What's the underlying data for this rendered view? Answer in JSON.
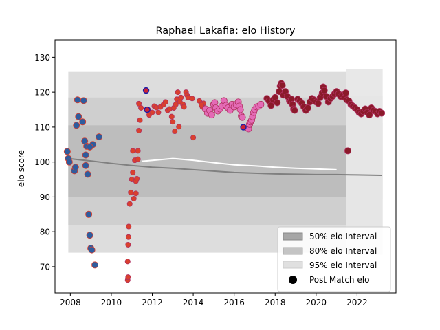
{
  "chart_data": {
    "type": "scatter",
    "title": "Raphael Lakafia: elo History",
    "xlabel": "",
    "ylabel": "elo score",
    "xlim": [
      2007.25,
      2023.9
    ],
    "ylim": [
      62.5,
      135.0
    ],
    "xticks": [
      2008,
      2010,
      2012,
      2014,
      2016,
      2018,
      2020,
      2022
    ],
    "yticks": [
      70,
      80,
      90,
      100,
      110,
      120,
      130
    ],
    "grid": false,
    "legend_position": "lower-right",
    "legend": [
      {
        "label": "50% elo Interval",
        "kind": "band",
        "color": "#a6a6a6"
      },
      {
        "label": "80% elo Interval",
        "kind": "band",
        "color": "#c4c4c4"
      },
      {
        "label": "95% elo Interval",
        "kind": "band",
        "color": "#e0e0e0"
      },
      {
        "label": "Post Match elo",
        "kind": "marker",
        "color": "#000000"
      }
    ],
    "colors": {
      "club_points_red": "#d9402e",
      "club_points_blue": "#2e5c9e",
      "club_points_pink": "#e46bb6",
      "club_points_crimson": "#8b1a2a",
      "highlight_edge_blue": "#1a1aa6",
      "mean_line": "#808080",
      "white_line": "#ffffff"
    },
    "bands": {
      "x_start": 2007.9,
      "x_end_dense": 2021.45,
      "x_end_light": 2023.25,
      "i95": {
        "top": 126,
        "bottom": 74
      },
      "i80": {
        "top": 118.5,
        "bottom": 82
      },
      "i50": {
        "top": 110.5,
        "bottom": 90
      }
    },
    "mean_line": {
      "x": [
        2007.9,
        2009.0,
        2010.0,
        2011.0,
        2012.0,
        2013.0,
        2014.0,
        2015.0,
        2016.0,
        2017.0,
        2018.0,
        2019.0,
        2020.0,
        2021.0,
        2022.0,
        2023.2
      ],
      "y": [
        101.0,
        100.3,
        99.6,
        99.0,
        98.5,
        98.2,
        97.8,
        97.4,
        97.0,
        96.8,
        96.6,
        96.5,
        96.4,
        96.4,
        96.3,
        96.2
      ]
    },
    "white_line": {
      "x": [
        2011.5,
        2013.0,
        2014.0,
        2015.0,
        2016.0,
        2017.0,
        2018.0,
        2019.0,
        2020.0,
        2021.0
      ],
      "y": [
        100.2,
        101.0,
        100.5,
        99.8,
        99.2,
        98.9,
        98.5,
        98.2,
        98.0,
        97.8
      ]
    },
    "series": [
      {
        "color": "#2e5c9e",
        "points": [
          [
            2007.85,
            103
          ],
          [
            2007.9,
            101
          ],
          [
            2007.95,
            100
          ],
          [
            2008.2,
            97.5
          ],
          [
            2008.25,
            98.5
          ],
          [
            2008.3,
            110.5
          ],
          [
            2008.35,
            117.8
          ],
          [
            2008.4,
            113
          ],
          [
            2008.6,
            111.5
          ],
          [
            2008.65,
            117.6
          ],
          [
            2008.7,
            106
          ],
          [
            2008.75,
            102
          ],
          [
            2008.8,
            104.5
          ],
          [
            2008.85,
            96.5
          ],
          [
            2008.9,
            85
          ],
          [
            2008.95,
            79
          ],
          [
            2009.0,
            75.3
          ],
          [
            2009.05,
            74.8
          ],
          [
            2009.2,
            70.5
          ],
          [
            2009.1,
            105
          ],
          [
            2009.4,
            107.2
          ],
          [
            2008.95,
            104.3
          ],
          [
            2008.75,
            99
          ]
        ]
      },
      {
        "color": "#d9402e",
        "points": [
          [
            2010.8,
            66.2
          ],
          [
            2010.82,
            67
          ],
          [
            2010.8,
            71.5
          ],
          [
            2010.82,
            76.3
          ],
          [
            2010.84,
            78.5
          ],
          [
            2010.85,
            81.5
          ],
          [
            2010.9,
            88
          ],
          [
            2010.95,
            91.3
          ],
          [
            2011.0,
            95
          ],
          [
            2011.05,
            97
          ],
          [
            2011.05,
            103.2
          ],
          [
            2011.1,
            89.5
          ],
          [
            2011.15,
            100.5
          ],
          [
            2011.2,
            94.5
          ],
          [
            2011.2,
            91
          ],
          [
            2011.25,
            95.2
          ],
          [
            2011.3,
            100.8
          ],
          [
            2011.3,
            103.2
          ],
          [
            2011.35,
            109
          ],
          [
            2011.4,
            112
          ],
          [
            2011.35,
            116.7
          ],
          [
            2011.45,
            115.5
          ],
          [
            2011.8,
            115
          ],
          [
            2011.85,
            113.5
          ],
          [
            2012.0,
            114.2
          ],
          [
            2012.1,
            116
          ],
          [
            2012.2,
            115.6
          ],
          [
            2012.3,
            114.2
          ],
          [
            2012.4,
            115.8
          ],
          [
            2012.55,
            116.5
          ],
          [
            2012.65,
            117.2
          ],
          [
            2012.75,
            114.8
          ],
          [
            2012.85,
            115.2
          ],
          [
            2012.95,
            113
          ],
          [
            2013.0,
            111.5
          ],
          [
            2013.05,
            115.5
          ],
          [
            2013.1,
            108.8
          ],
          [
            2013.15,
            116.5
          ],
          [
            2013.2,
            118
          ],
          [
            2013.25,
            120
          ],
          [
            2013.3,
            110.1
          ],
          [
            2013.35,
            117.2
          ],
          [
            2013.4,
            118.5
          ],
          [
            2013.5,
            116.5
          ],
          [
            2013.55,
            115.8
          ],
          [
            2013.65,
            120
          ],
          [
            2013.7,
            119.2
          ],
          [
            2013.75,
            118.5
          ],
          [
            2013.95,
            118.2
          ],
          [
            2014.0,
            107
          ],
          [
            2014.3,
            117.5
          ],
          [
            2014.45,
            115.8
          ],
          [
            2014.5,
            116.8
          ],
          [
            2014.4,
            116.4
          ]
        ]
      },
      {
        "color": "#e46bb6",
        "points": [
          [
            2014.6,
            115.2
          ],
          [
            2014.7,
            114
          ],
          [
            2014.8,
            114.8
          ],
          [
            2014.9,
            113.5
          ],
          [
            2015.0,
            116.5
          ],
          [
            2015.05,
            117
          ],
          [
            2015.1,
            115.5
          ],
          [
            2015.2,
            114.6
          ],
          [
            2015.3,
            115.2
          ],
          [
            2015.4,
            116
          ],
          [
            2015.5,
            117.6
          ],
          [
            2015.6,
            116.2
          ],
          [
            2015.7,
            115.5
          ],
          [
            2015.8,
            114.8
          ],
          [
            2015.9,
            116.5
          ],
          [
            2016.0,
            115.8
          ],
          [
            2016.1,
            116.5
          ],
          [
            2016.2,
            117.2
          ],
          [
            2016.25,
            116
          ],
          [
            2016.3,
            115
          ],
          [
            2016.35,
            113.2
          ],
          [
            2016.4,
            112.8
          ],
          [
            2016.7,
            109.5
          ],
          [
            2016.75,
            110.8
          ],
          [
            2016.8,
            111.5
          ],
          [
            2016.85,
            112
          ],
          [
            2016.9,
            113
          ],
          [
            2016.95,
            114.2
          ],
          [
            2017.0,
            115
          ],
          [
            2017.1,
            115.8
          ],
          [
            2017.2,
            116
          ],
          [
            2017.3,
            116.5
          ]
        ]
      },
      {
        "color": "#8b1a2a",
        "points": [
          [
            2017.6,
            118.2
          ],
          [
            2017.7,
            117.5
          ],
          [
            2017.8,
            116.2
          ],
          [
            2017.9,
            117.8
          ],
          [
            2018.0,
            118.5
          ],
          [
            2018.1,
            117
          ],
          [
            2018.2,
            120.2
          ],
          [
            2018.25,
            121.8
          ],
          [
            2018.3,
            122.5
          ],
          [
            2018.35,
            122
          ],
          [
            2018.4,
            119.2
          ],
          [
            2018.5,
            120.2
          ],
          [
            2018.6,
            118.8
          ],
          [
            2018.7,
            117.5
          ],
          [
            2018.75,
            117.2
          ],
          [
            2018.8,
            118
          ],
          [
            2018.85,
            116.5
          ],
          [
            2018.9,
            115.2
          ],
          [
            2018.95,
            114.8
          ],
          [
            2019.1,
            118
          ],
          [
            2019.2,
            117.5
          ],
          [
            2019.3,
            116.8
          ],
          [
            2019.4,
            115.8
          ],
          [
            2019.5,
            114.8
          ],
          [
            2019.6,
            115.5
          ],
          [
            2019.7,
            117.2
          ],
          [
            2019.8,
            118.2
          ],
          [
            2019.9,
            117.8
          ],
          [
            2020.0,
            117.2
          ],
          [
            2020.1,
            116.8
          ],
          [
            2020.2,
            118.5
          ],
          [
            2020.3,
            119.8
          ],
          [
            2020.35,
            121.5
          ],
          [
            2020.4,
            120.5
          ],
          [
            2020.5,
            118.8
          ],
          [
            2020.6,
            117.2
          ],
          [
            2020.7,
            118.2
          ],
          [
            2020.8,
            118.8
          ],
          [
            2020.9,
            119.5
          ],
          [
            2021.0,
            120.2
          ],
          [
            2021.1,
            119.5
          ],
          [
            2021.2,
            118.8
          ],
          [
            2021.3,
            119.2
          ],
          [
            2021.4,
            118.5
          ],
          [
            2021.45,
            119.8
          ],
          [
            2021.5,
            117.8
          ],
          [
            2021.55,
            103.2
          ],
          [
            2021.6,
            117.5
          ],
          [
            2021.7,
            116.5
          ],
          [
            2021.8,
            116
          ],
          [
            2021.9,
            115.5
          ],
          [
            2022.0,
            115
          ],
          [
            2022.1,
            114.2
          ],
          [
            2022.2,
            113.8
          ],
          [
            2022.3,
            114.5
          ],
          [
            2022.4,
            115.2
          ],
          [
            2022.5,
            114.2
          ],
          [
            2022.6,
            113.5
          ],
          [
            2022.7,
            115.5
          ],
          [
            2022.8,
            114.8
          ],
          [
            2022.9,
            114.5
          ],
          [
            2023.0,
            113.8
          ],
          [
            2023.1,
            114.5
          ],
          [
            2023.2,
            114
          ]
        ]
      }
    ],
    "highlight_points": [
      {
        "x": 2011.7,
        "y": 120.5
      },
      {
        "x": 2011.75,
        "y": 115
      },
      {
        "x": 2016.45,
        "y": 110
      }
    ]
  }
}
